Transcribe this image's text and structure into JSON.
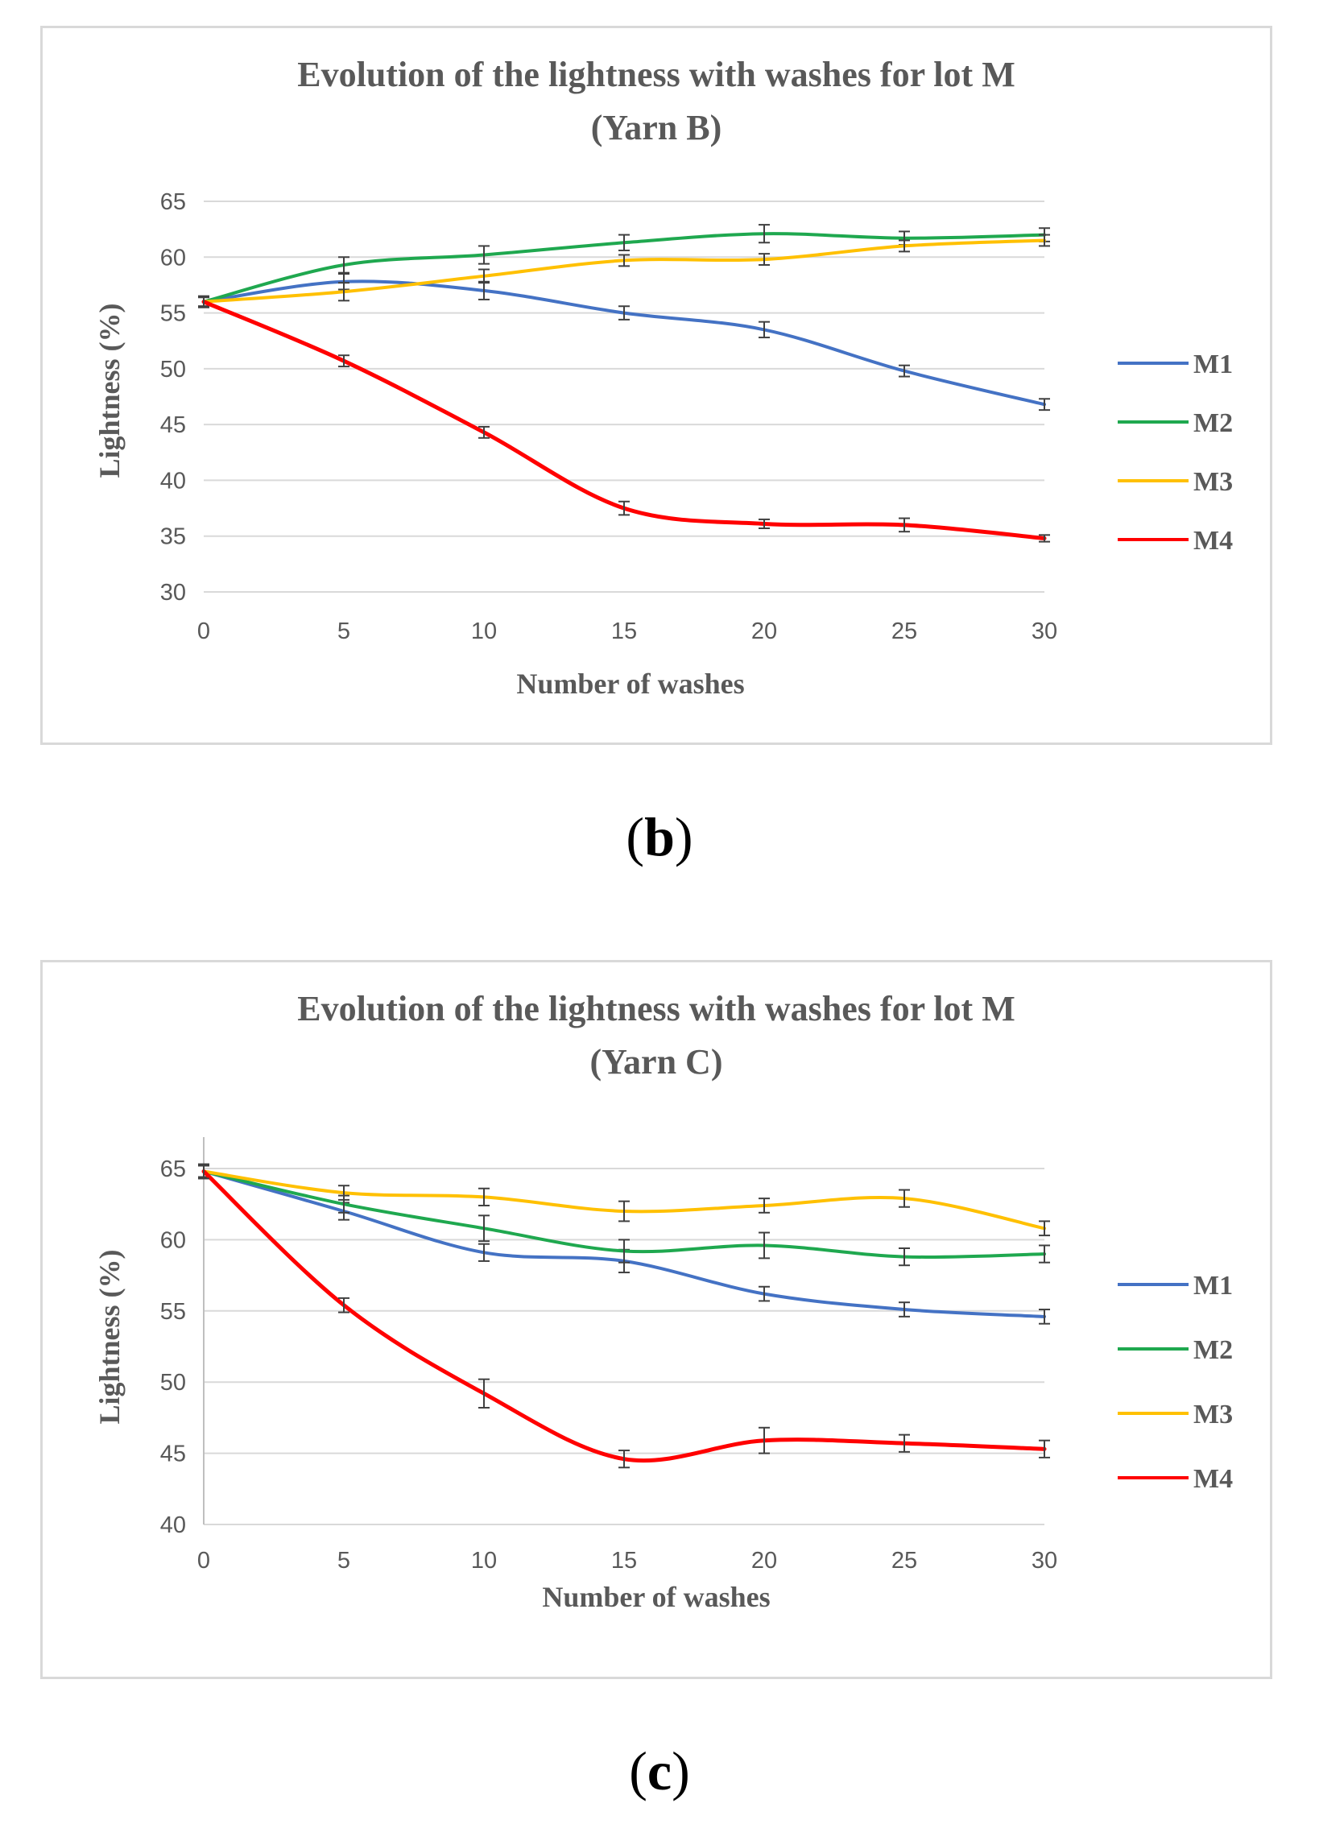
{
  "colors": {
    "M1": "#4472c4",
    "M2": "#1fa84f",
    "M3": "#ffc000",
    "M4": "#ff0000"
  },
  "chart_data": [
    {
      "id": "b",
      "type": "line",
      "title_line1": "Evolution of the lightness with washes for lot M",
      "title_line2": "(Yarn B)",
      "xlabel": "Number of washes",
      "ylabel": "Lightness (%)",
      "x": [
        0,
        5,
        10,
        15,
        20,
        25,
        30
      ],
      "xticks": [
        "0",
        "5",
        "10",
        "15",
        "20",
        "25",
        "30"
      ],
      "yticks": [
        "30",
        "35",
        "40",
        "45",
        "50",
        "55",
        "60",
        "65"
      ],
      "ylim": [
        30,
        65
      ],
      "grid": true,
      "legend": "right",
      "caption": "b",
      "series": [
        {
          "name": "M1",
          "values": [
            56,
            57.8,
            57,
            55,
            53.5,
            49.8,
            46.8
          ],
          "err": [
            0.5,
            0.7,
            0.8,
            0.6,
            0.7,
            0.5,
            0.5
          ]
        },
        {
          "name": "M2",
          "values": [
            56,
            59.3,
            60.2,
            61.3,
            62.1,
            61.7,
            62
          ],
          "err": [
            0.4,
            0.7,
            0.8,
            0.7,
            0.8,
            0.6,
            0.6
          ]
        },
        {
          "name": "M3",
          "values": [
            56,
            56.9,
            58.3,
            59.7,
            59.8,
            61,
            61.5
          ],
          "err": [
            0.4,
            0.8,
            0.6,
            0.5,
            0.5,
            0.5,
            0.5
          ]
        },
        {
          "name": "M4",
          "values": [
            56,
            50.7,
            44.3,
            37.5,
            36.1,
            36,
            34.8
          ],
          "err": [
            0.5,
            0.5,
            0.5,
            0.6,
            0.4,
            0.6,
            0.3
          ]
        }
      ]
    },
    {
      "id": "c",
      "type": "line",
      "title_line1": "Evolution of the lightness with washes for lot M",
      "title_line2": "(Yarn C)",
      "xlabel": "Number of washes",
      "ylabel": "Lightness (%)",
      "x": [
        0,
        5,
        10,
        15,
        20,
        25,
        30
      ],
      "xticks": [
        "0",
        "5",
        "10",
        "15",
        "20",
        "25",
        "30"
      ],
      "yticks": [
        "40",
        "45",
        "50",
        "55",
        "60",
        "65"
      ],
      "ylim": [
        40,
        67
      ],
      "grid": true,
      "legend": "right",
      "caption": "c",
      "series": [
        {
          "name": "M1",
          "values": [
            64.8,
            62,
            59.1,
            58.5,
            56.2,
            55.1,
            54.6
          ],
          "err": [
            0.5,
            0.6,
            0.6,
            0.8,
            0.5,
            0.5,
            0.5
          ]
        },
        {
          "name": "M2",
          "values": [
            64.8,
            62.5,
            60.8,
            59.2,
            59.6,
            58.8,
            59
          ],
          "err": [
            0.4,
            0.6,
            0.9,
            0.8,
            0.9,
            0.6,
            0.6
          ]
        },
        {
          "name": "M3",
          "values": [
            64.8,
            63.3,
            63,
            62,
            62.4,
            62.9,
            60.8
          ],
          "err": [
            0.4,
            0.5,
            0.6,
            0.7,
            0.5,
            0.6,
            0.5
          ]
        },
        {
          "name": "M4",
          "values": [
            64.8,
            55.4,
            49.2,
            44.6,
            45.9,
            45.7,
            45.3
          ],
          "err": [
            0.5,
            0.5,
            1,
            0.6,
            0.9,
            0.6,
            0.6
          ]
        }
      ]
    }
  ]
}
